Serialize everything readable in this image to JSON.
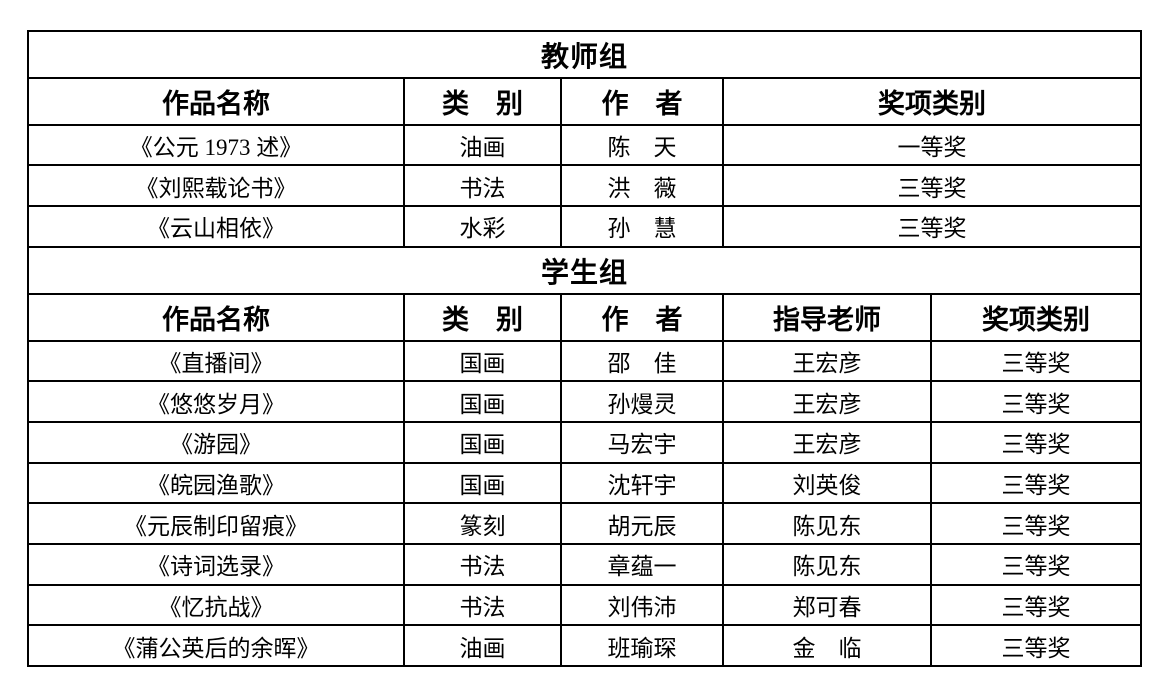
{
  "page": {
    "background_color": "#ffffff",
    "text_color": "#000000",
    "border_color": "#000000"
  },
  "table": {
    "cell_names": [
      "work-title",
      "category",
      "author",
      "advisor",
      "award"
    ],
    "sections": [
      {
        "title": "教师组",
        "columns": [
          "作品名称",
          "类　别",
          "作　者",
          "奖项类别"
        ],
        "rows": [
          [
            "《公元 1973 述》",
            "油画",
            "陈　天",
            "一等奖"
          ],
          [
            "《刘熙载论书》",
            "书法",
            "洪　薇",
            "三等奖"
          ],
          [
            "《云山相依》",
            "水彩",
            "孙　慧",
            "三等奖"
          ]
        ]
      },
      {
        "title": "学生组",
        "columns": [
          "作品名称",
          "类　别",
          "作　者",
          "指导老师",
          "奖项类别"
        ],
        "rows": [
          [
            "《直播间》",
            "国画",
            "邵　佳",
            "王宏彦",
            "三等奖"
          ],
          [
            "《悠悠岁月》",
            "国画",
            "孙熳灵",
            "王宏彦",
            "三等奖"
          ],
          [
            "《游园》",
            "国画",
            "马宏宇",
            "王宏彦",
            "三等奖"
          ],
          [
            "《皖园渔歌》",
            "国画",
            "沈轩宇",
            "刘英俊",
            "三等奖"
          ],
          [
            "《元辰制印留痕》",
            "篆刻",
            "胡元辰",
            "陈见东",
            "三等奖"
          ],
          [
            "《诗词选录》",
            "书法",
            "章蕴一",
            "陈见东",
            "三等奖"
          ],
          [
            "《忆抗战》",
            "书法",
            "刘伟沛",
            "郑可春",
            "三等奖"
          ],
          [
            "《蒲公英后的余晖》",
            "油画",
            "班瑜琛",
            "金　临",
            "三等奖"
          ]
        ]
      }
    ]
  }
}
